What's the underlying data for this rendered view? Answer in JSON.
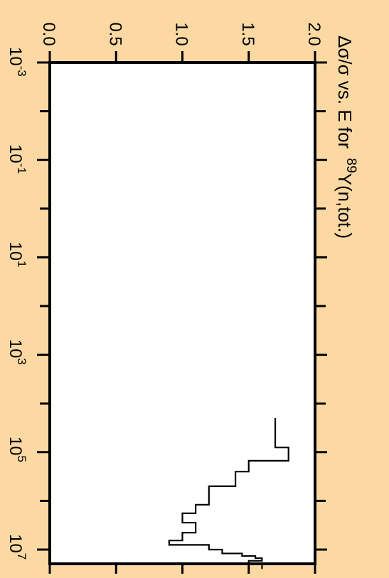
{
  "chart_data": {
    "type": "line",
    "title_parts": {
      "prefix": "Δσ/σ vs. E for ",
      "superscript": "89",
      "suffix": "Y(n,tot.)"
    },
    "x_axis": {
      "scale": "log",
      "range": [
        0.001,
        10000000
      ],
      "ticks": [
        {
          "base": "10",
          "exp": "-3",
          "value": 0.001
        },
        {
          "base": "10",
          "exp": "-1",
          "value": 0.1
        },
        {
          "base": "10",
          "exp": "1",
          "value": 10
        },
        {
          "base": "10",
          "exp": "3",
          "value": 1000
        },
        {
          "base": "10",
          "exp": "5",
          "value": 100000
        },
        {
          "base": "10",
          "exp": "7",
          "value": 10000000
        }
      ]
    },
    "y_axis": {
      "scale": "linear",
      "range": [
        0,
        2
      ],
      "ticks": [
        "0.0",
        "0.5",
        "1.0",
        "1.5",
        "2.0"
      ]
    },
    "series": [
      {
        "style": "step",
        "color": "#000000",
        "points": [
          [
            20000,
            1.7
          ],
          [
            80000,
            1.8
          ],
          [
            150000,
            1.5
          ],
          [
            250000,
            1.4
          ],
          [
            500000,
            1.2
          ],
          [
            1200000,
            1.1
          ],
          [
            1800000,
            1.0
          ],
          [
            2800000,
            1.1
          ],
          [
            4500000,
            1.0
          ],
          [
            6500000,
            0.9
          ],
          [
            8000000,
            1.2
          ],
          [
            10000000,
            1.3
          ],
          [
            12000000,
            1.45
          ],
          [
            13500000,
            1.55
          ],
          [
            15000000,
            1.6
          ],
          [
            17000000,
            1.5
          ],
          [
            20000000,
            1.6
          ],
          [
            25000000,
            1.6
          ]
        ]
      }
    ]
  }
}
